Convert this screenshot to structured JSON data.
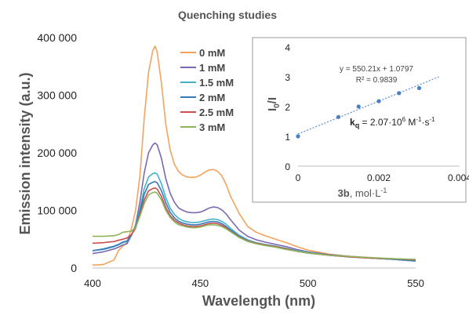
{
  "chart_data": [
    {
      "type": "line",
      "title": "Quenching studies",
      "xlabel": "Wavelength (nm)",
      "ylabel": "Emission intensity (a.u.)",
      "xlim": [
        400,
        550
      ],
      "ylim": [
        0,
        400000
      ],
      "x_ticks": [
        "400",
        "450",
        "500",
        "550"
      ],
      "y_ticks": [
        "0",
        "100 000",
        "200 000",
        "300 000",
        "400 000"
      ],
      "grid": false,
      "legend": "right, inside plot area",
      "x": [
        400,
        405,
        410,
        412,
        414,
        416,
        418,
        420,
        422,
        424,
        426,
        428,
        429,
        430,
        432,
        434,
        436,
        438,
        440,
        442,
        444,
        446,
        448,
        450,
        452,
        454,
        456,
        458,
        460,
        462,
        464,
        468,
        472,
        476,
        480,
        485,
        490,
        495,
        500,
        510,
        520,
        530,
        540,
        550
      ],
      "series": [
        {
          "name": "0 mM",
          "color": "#f4a35c",
          "values": [
            5000,
            6000,
            14000,
            30000,
            38000,
            44000,
            68000,
            100000,
            160000,
            260000,
            340000,
            378000,
            385000,
            375000,
            320000,
            250000,
            205000,
            180000,
            167000,
            161000,
            158000,
            157000,
            158000,
            161000,
            166000,
            170000,
            171000,
            168000,
            160000,
            145000,
            125000,
            95000,
            72000,
            62000,
            56000,
            50000,
            44000,
            37000,
            31000,
            24000,
            20000,
            17000,
            15000,
            12000
          ]
        },
        {
          "name": "1 mM",
          "color": "#7b68b0",
          "values": [
            25000,
            28000,
            33000,
            36000,
            40000,
            42000,
            56000,
            75000,
            115000,
            165000,
            200000,
            214000,
            217000,
            214000,
            190000,
            155000,
            130000,
            114000,
            104000,
            100000,
            97000,
            96000,
            96000,
            97000,
            100000,
            104000,
            106000,
            105000,
            101000,
            94000,
            84000,
            66000,
            55000,
            49000,
            45000,
            41000,
            37000,
            32000,
            28000,
            23000,
            20000,
            17000,
            15000,
            12000
          ]
        },
        {
          "name": "1.5 mM",
          "color": "#43b2c9",
          "values": [
            30000,
            32000,
            37000,
            40000,
            44000,
            46000,
            56000,
            72000,
            102000,
            138000,
            158000,
            164000,
            165000,
            163000,
            146000,
            122000,
            104000,
            93000,
            86000,
            82000,
            80000,
            79000,
            79000,
            80000,
            82000,
            84000,
            85000,
            84000,
            81000,
            76000,
            69000,
            57000,
            49000,
            44000,
            41000,
            38000,
            34000,
            30000,
            27000,
            22000,
            19000,
            17000,
            15000,
            12000
          ]
        },
        {
          "name": "2 mM",
          "color": "#3a78b8",
          "values": [
            30000,
            33000,
            38000,
            41000,
            45000,
            47000,
            57000,
            70000,
            97000,
            128000,
            145000,
            149000,
            150000,
            148000,
            134000,
            113000,
            97000,
            87000,
            81000,
            78000,
            76000,
            75000,
            75000,
            76000,
            78000,
            80000,
            81000,
            80000,
            77000,
            72000,
            66000,
            55000,
            47000,
            43000,
            40000,
            37000,
            33000,
            29000,
            26000,
            22000,
            19000,
            17000,
            15000,
            13000
          ]
        },
        {
          "name": "2.5 mM",
          "color": "#c9504e",
          "values": [
            43000,
            44000,
            46000,
            48000,
            50000,
            52000,
            58000,
            69000,
            93000,
            118000,
            134000,
            138000,
            139000,
            137000,
            124000,
            105000,
            91000,
            83000,
            78000,
            75000,
            73000,
            72000,
            72000,
            73000,
            75000,
            77000,
            78000,
            77000,
            74000,
            70000,
            64000,
            54000,
            47000,
            43000,
            40000,
            37000,
            33000,
            29000,
            26000,
            22000,
            19000,
            17000,
            16000,
            14000
          ]
        },
        {
          "name": "3 mM",
          "color": "#8fb45a",
          "values": [
            55000,
            55000,
            56000,
            58000,
            62000,
            63000,
            64000,
            70000,
            90000,
            112000,
            127000,
            131000,
            132000,
            130000,
            118000,
            100000,
            88000,
            80000,
            75000,
            73000,
            71000,
            70000,
            70000,
            71000,
            73000,
            75000,
            75000,
            74000,
            72000,
            68000,
            63000,
            53000,
            46000,
            42000,
            39000,
            36000,
            32000,
            29000,
            26000,
            22000,
            20000,
            18000,
            16000,
            15000
          ]
        }
      ]
    },
    {
      "type": "scatter",
      "title": "",
      "xlabel_bold": "3b",
      "xlabel_rest": ", mol·L",
      "xlabel_sup": "-1",
      "ylabel_main": "I",
      "ylabel_sub1": "0",
      "ylabel_mid": "/I",
      "xlim": [
        0,
        0.004
      ],
      "ylim": [
        0,
        4
      ],
      "x_ticks": [
        "0",
        "0.002",
        "0.004"
      ],
      "y_ticks": [
        "0",
        "1",
        "2",
        "3",
        "4"
      ],
      "point_color": "#4a7fc1",
      "trend_color": "#5b8fd1",
      "points": [
        {
          "x": 0,
          "y": 1.0
        },
        {
          "x": 0.001,
          "y": 1.65
        },
        {
          "x": 0.0015,
          "y": 2.0
        },
        {
          "x": 0.002,
          "y": 2.18
        },
        {
          "x": 0.0025,
          "y": 2.45
        },
        {
          "x": 0.003,
          "y": 2.62
        }
      ],
      "trendline": {
        "slope": 550.21,
        "intercept": 1.0797,
        "x_range": [
          0,
          0.0035
        ]
      },
      "equation": "y = 550.21x + 1.0797",
      "r_squared": "R² = 0.9839",
      "kq_label": "k",
      "kq_sub": "q",
      "kq_value": " = 2.07·10",
      "kq_exp": "6",
      "kq_unit": " M",
      "kq_unit_exp": "-1",
      "kq_unit_tail": "·s",
      "kq_unit_tail_exp": "-1"
    }
  ]
}
